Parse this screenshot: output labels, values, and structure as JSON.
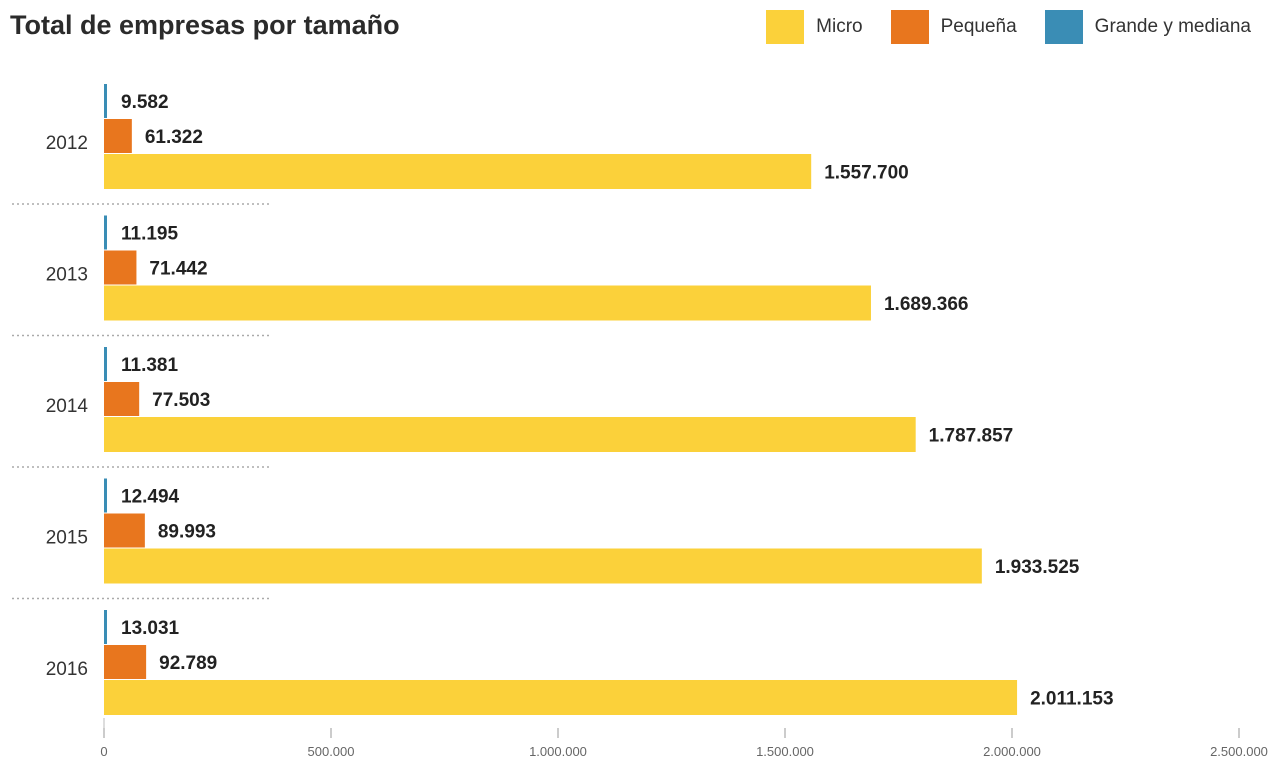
{
  "chart_data": {
    "type": "bar",
    "orientation": "horizontal",
    "title": "Total de empresas por tamaño",
    "categories": [
      "2012",
      "2013",
      "2014",
      "2015",
      "2016"
    ],
    "series": [
      {
        "name": "Grande y mediana",
        "color": "#3a8db5",
        "values": [
          9582,
          11195,
          11381,
          12494,
          13031
        ],
        "labels": [
          "9.582",
          "11.195",
          "11.381",
          "12.494",
          "13.031"
        ]
      },
      {
        "name": "Pequeña",
        "color": "#e8761e",
        "values": [
          61322,
          71442,
          77503,
          89993,
          92789
        ],
        "labels": [
          "61.322",
          "71.442",
          "77.503",
          "89.993",
          "92.789"
        ]
      },
      {
        "name": "Micro",
        "color": "#fbd13a",
        "values": [
          1557700,
          1689366,
          1787857,
          1933525,
          2011153
        ],
        "labels": [
          "1.557.700",
          "1.689.366",
          "1.787.857",
          "1.933.525",
          "2.011.153"
        ]
      }
    ],
    "xlim": [
      0,
      2500000
    ],
    "xticks": [
      0,
      500000,
      1000000,
      1500000,
      2000000,
      2500000
    ],
    "xtick_labels": [
      "0",
      "500.000",
      "1.000.000",
      "1.500.000",
      "2.000.000",
      "2.500.000"
    ],
    "legend_position": "top-right",
    "grid": false
  }
}
